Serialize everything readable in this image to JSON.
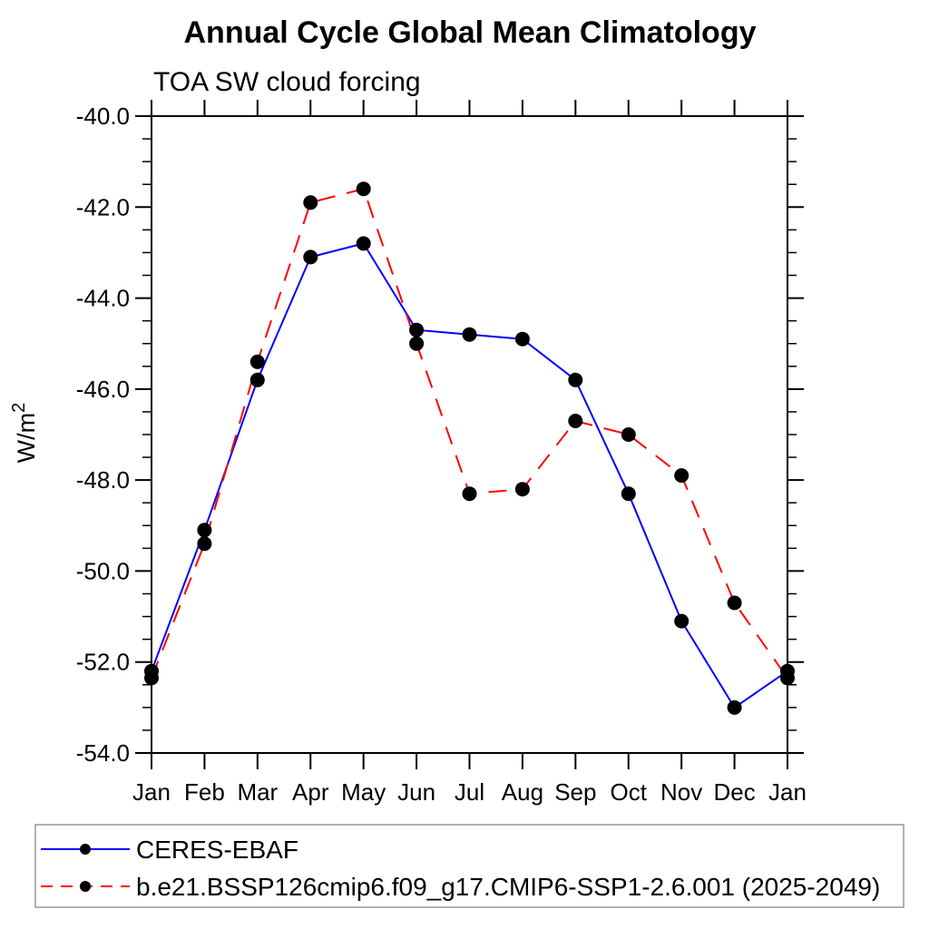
{
  "page": {
    "background_color": "#ffffff",
    "text_color": "#000000"
  },
  "chart_data": {
    "type": "line",
    "title": "Annual Cycle Global Mean Climatology",
    "subtitle": "TOA SW cloud forcing",
    "ylabel_base": "W/m",
    "ylabel_exp": "2",
    "x_categories": [
      "Jan",
      "Feb",
      "Mar",
      "Apr",
      "May",
      "Jun",
      "Jul",
      "Aug",
      "Sep",
      "Oct",
      "Nov",
      "Dec",
      "Jan"
    ],
    "ylim": [
      -54.0,
      -40.0
    ],
    "y_major_tick_values": [
      -40.0,
      -42.0,
      -44.0,
      -46.0,
      -48.0,
      -50.0,
      -52.0,
      -54.0
    ],
    "y_major_tick_labels": [
      "-40.0",
      "-42.0",
      "-44.0",
      "-46.0",
      "-48.0",
      "-50.0",
      "-52.0",
      "-54.0"
    ],
    "y_minor_tick_step": 0.5,
    "grid": false,
    "legend_position": "bottom",
    "marker_color": "#000000",
    "axis_color": "#000000",
    "legend_border_color": "#999999",
    "series": [
      {
        "name": "CERES-EBAF",
        "color": "#0000ff",
        "line_style": "solid",
        "marker": "filled-circle",
        "values": [
          -52.2,
          -49.1,
          -45.8,
          -43.1,
          -42.8,
          -44.7,
          -44.8,
          -44.9,
          -45.8,
          -48.3,
          -51.1,
          -53.0,
          -52.2
        ]
      },
      {
        "name": "b.e21.BSSP126cmip6.f09_g17.CMIP6-SSP1-2.6.001 (2025-2049)",
        "color": "#ff0000",
        "line_style": "dashed",
        "marker": "filled-circle",
        "values": [
          -52.35,
          -49.4,
          -45.4,
          -41.9,
          -41.6,
          -45.0,
          -48.3,
          -48.2,
          -46.7,
          -47.0,
          -47.9,
          -50.7,
          -52.35
        ]
      }
    ]
  }
}
